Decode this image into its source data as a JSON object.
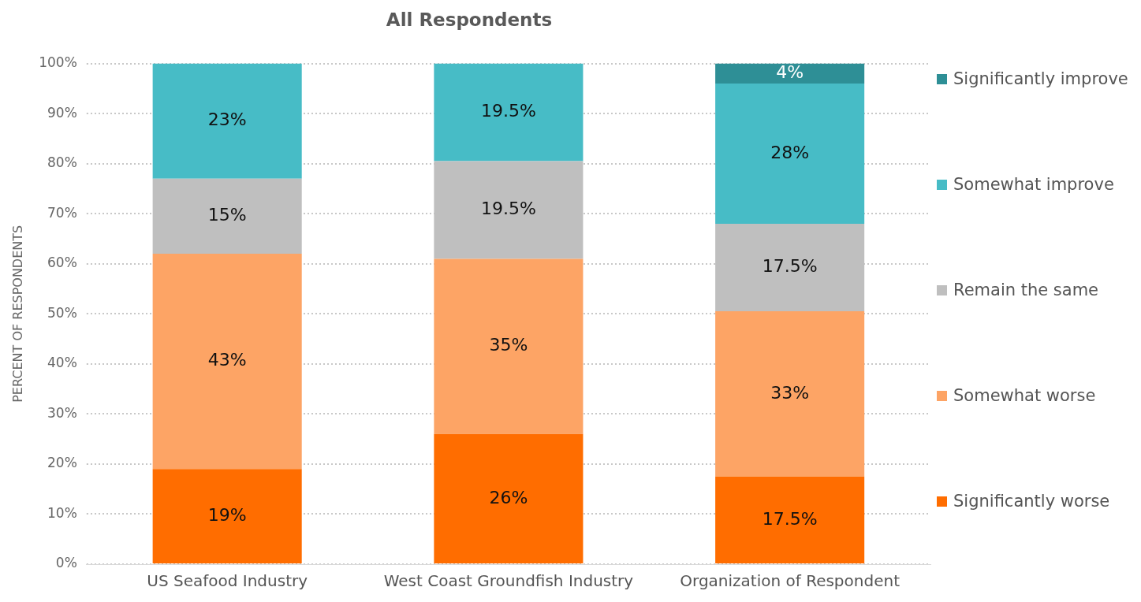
{
  "chart_data": {
    "type": "bar",
    "title": "All Respondents",
    "ylabel": "PERCENT OF RESPONDENTS",
    "stacked": true,
    "legend": "right",
    "grid": "y",
    "categories": [
      "US Seafood Industry",
      "West Coast Groundfish Industry",
      "Organization of Respondent"
    ],
    "ylim": [
      0,
      100
    ],
    "yticks": [
      {
        "value": 0,
        "label": "0%"
      },
      {
        "value": 10,
        "label": "10%"
      },
      {
        "value": 20,
        "label": "20%"
      },
      {
        "value": 30,
        "label": "30%"
      },
      {
        "value": 40,
        "label": "40%"
      },
      {
        "value": 50,
        "label": "50%"
      },
      {
        "value": 60,
        "label": "60%"
      },
      {
        "value": 70,
        "label": "70%"
      },
      {
        "value": 80,
        "label": "80%"
      },
      {
        "value": 90,
        "label": "90%"
      },
      {
        "value": 100,
        "label": "100%"
      }
    ],
    "series": [
      {
        "name": "Significantly worse",
        "color": "#ff6d00",
        "values": [
          19,
          26,
          17.5
        ],
        "value_labels": [
          "19%",
          "26%",
          "17.5%"
        ]
      },
      {
        "name": "Somewhat worse",
        "color": "#fda465",
        "values": [
          43,
          35,
          33
        ],
        "value_labels": [
          "43%",
          "35%",
          "33%"
        ]
      },
      {
        "name": "Remain the same",
        "color": "#bfbfbf",
        "values": [
          15,
          19.5,
          17.5
        ],
        "value_labels": [
          "15%",
          "19.5%",
          "17.5%"
        ]
      },
      {
        "name": "Somewhat improve",
        "color": "#47bcc6",
        "values": [
          23,
          19.5,
          28
        ],
        "value_labels": [
          "23%",
          "19.5%",
          "28%"
        ]
      },
      {
        "name": "Significantly improve",
        "color": "#2e8f96",
        "values": [
          null,
          null,
          4
        ],
        "value_labels": [
          null,
          null,
          "4%"
        ]
      }
    ]
  }
}
